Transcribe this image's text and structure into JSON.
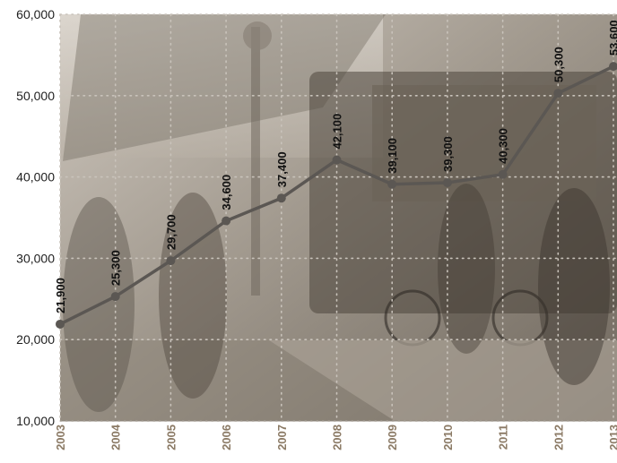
{
  "chart_data": {
    "type": "line",
    "title": "",
    "xlabel": "",
    "ylabel": "",
    "categories": [
      "2003",
      "2004",
      "2005",
      "2006",
      "2007",
      "2008",
      "2009",
      "2010",
      "2011",
      "2012",
      "2013"
    ],
    "values": [
      21900,
      25300,
      29700,
      34600,
      37400,
      42100,
      39100,
      39300,
      40300,
      50300,
      53600
    ],
    "data_labels": [
      "21,900",
      "25,300",
      "29,700",
      "34,600",
      "37,400",
      "42,100",
      "39,100",
      "39,300",
      "40,300",
      "50,300",
      "53,600"
    ],
    "ylim": [
      10000,
      60000
    ],
    "yticks": [
      10000,
      20000,
      30000,
      40000,
      50000,
      60000
    ],
    "ytick_labels": [
      "10,000",
      "20,000",
      "30,000",
      "40,000",
      "50,000",
      "60,000"
    ],
    "grid": true,
    "grid_style": "dotted",
    "legend": "none",
    "colors": {
      "line": "#5b5753",
      "marker": "#5b5753",
      "grid": "#c9c3bb",
      "plot_background": "#a69e93",
      "x_tick_text": "#8b7a65",
      "y_tick_text": "#1f1f1f",
      "data_label_text": "#111111"
    },
    "background_image": "sepia-toned photo of commuters boarding a bus at a transit station"
  }
}
